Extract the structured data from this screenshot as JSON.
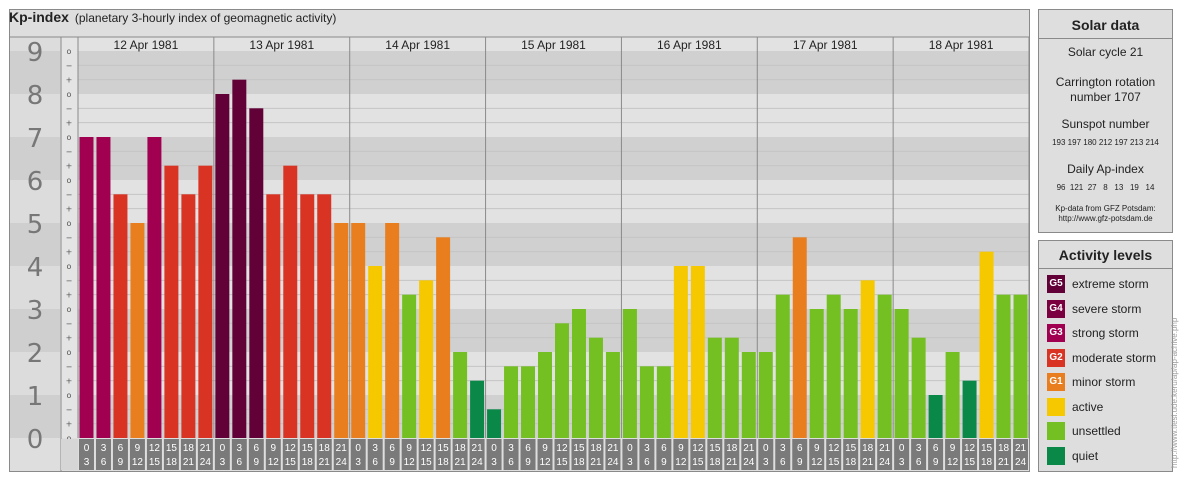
{
  "header": {
    "title": "Kp-index",
    "subtitle": "(planetary 3-hourly index of geomagnetic activity)"
  },
  "chart_data": {
    "type": "bar",
    "title": "Kp-index",
    "subtitle": "(planetary 3-hourly index of geomagnetic activity)",
    "ylim": [
      0,
      9
    ],
    "y_ticks": [
      "0",
      "1",
      "2",
      "3",
      "4",
      "5",
      "6",
      "7",
      "8",
      "9"
    ],
    "y_minor_ticks": [
      "o",
      "+",
      "−",
      "o",
      "+",
      "−",
      "o",
      "+",
      "−",
      "o",
      "+",
      "−",
      "o",
      "+",
      "−",
      "o",
      "+",
      "−",
      "o",
      "+",
      "−",
      "o",
      "+",
      "−",
      "o",
      "+",
      "−",
      "o"
    ],
    "days": [
      "12 Apr 1981",
      "13 Apr 1981",
      "14 Apr 1981",
      "15 Apr 1981",
      "16 Apr 1981",
      "17 Apr 1981",
      "18 Apr 1981"
    ],
    "interval_start_hours": [
      "0",
      "3",
      "6",
      "9",
      "12",
      "15",
      "18",
      "21"
    ],
    "interval_end_hours": [
      "3",
      "6",
      "9",
      "12",
      "15",
      "18",
      "21",
      "24"
    ],
    "values": [
      7,
      7,
      5.667,
      5,
      7,
      6.333,
      5.667,
      6.333,
      8,
      8.333,
      7.667,
      5.667,
      6.333,
      5.667,
      5.667,
      5,
      5,
      4,
      5,
      3.333,
      3.667,
      4.667,
      2,
      1.333,
      0.667,
      1.667,
      1.667,
      2,
      2.667,
      3,
      2.333,
      2,
      3,
      1.667,
      1.667,
      4,
      4,
      2.333,
      2.333,
      2,
      2,
      3.333,
      4.667,
      3,
      3.333,
      3,
      3.667,
      3.333,
      3,
      2.333,
      1,
      2,
      1.333,
      4.333,
      3.333,
      3.333
    ],
    "bar_colors": [
      "#a0004f",
      "#a0004f",
      "#d83323",
      "#e87e1e",
      "#a0004f",
      "#d83323",
      "#d83323",
      "#d83323",
      "#620038",
      "#620038",
      "#620038",
      "#d83323",
      "#d83323",
      "#d83323",
      "#d83323",
      "#e87e1e",
      "#e87e1e",
      "#f6c800",
      "#e87e1e",
      "#74bf21",
      "#f6c800",
      "#e87e1e",
      "#74bf21",
      "#0a8848",
      "#0a8848",
      "#74bf21",
      "#74bf21",
      "#74bf21",
      "#74bf21",
      "#74bf21",
      "#74bf21",
      "#74bf21",
      "#74bf21",
      "#74bf21",
      "#74bf21",
      "#f6c800",
      "#f6c800",
      "#74bf21",
      "#74bf21",
      "#74bf21",
      "#74bf21",
      "#74bf21",
      "#e87e1e",
      "#74bf21",
      "#74bf21",
      "#74bf21",
      "#f6c800",
      "#74bf21",
      "#74bf21",
      "#74bf21",
      "#0a8848",
      "#74bf21",
      "#0a8848",
      "#f6c800",
      "#74bf21",
      "#74bf21"
    ],
    "grid": true
  },
  "solar": {
    "title": "Solar data",
    "cycle": "Solar cycle 21",
    "carrington_1": "Carrington rotation",
    "carrington_2": "number 1707",
    "sunspot_title": "Sunspot number",
    "sunspot_values": "193 197 180 212 197 213 214",
    "ap_title": "Daily Ap-index",
    "ap_values": "96  121  27   8   13   19   14",
    "source_1": "Kp-data from GFZ Potsdam:",
    "source_2": "http://www.gfz-potsdam.de"
  },
  "legend": {
    "title": "Activity levels",
    "items": [
      {
        "code": "G5",
        "label": "extreme storm",
        "color": "#620038"
      },
      {
        "code": "G4",
        "label": "severe storm",
        "color": "#7a0040"
      },
      {
        "code": "G3",
        "label": "strong storm",
        "color": "#a0004f"
      },
      {
        "code": "G2",
        "label": "moderate storm",
        "color": "#d83323"
      },
      {
        "code": "G1",
        "label": "minor storm",
        "color": "#e87e1e"
      },
      {
        "code": "",
        "label": "active",
        "color": "#f6c800"
      },
      {
        "code": "",
        "label": "unsettled",
        "color": "#74bf21"
      },
      {
        "code": "",
        "label": "quiet",
        "color": "#0a8848"
      }
    ]
  },
  "credit": "http://www.tiesi.ude.keru/ap/ap-achive.php"
}
